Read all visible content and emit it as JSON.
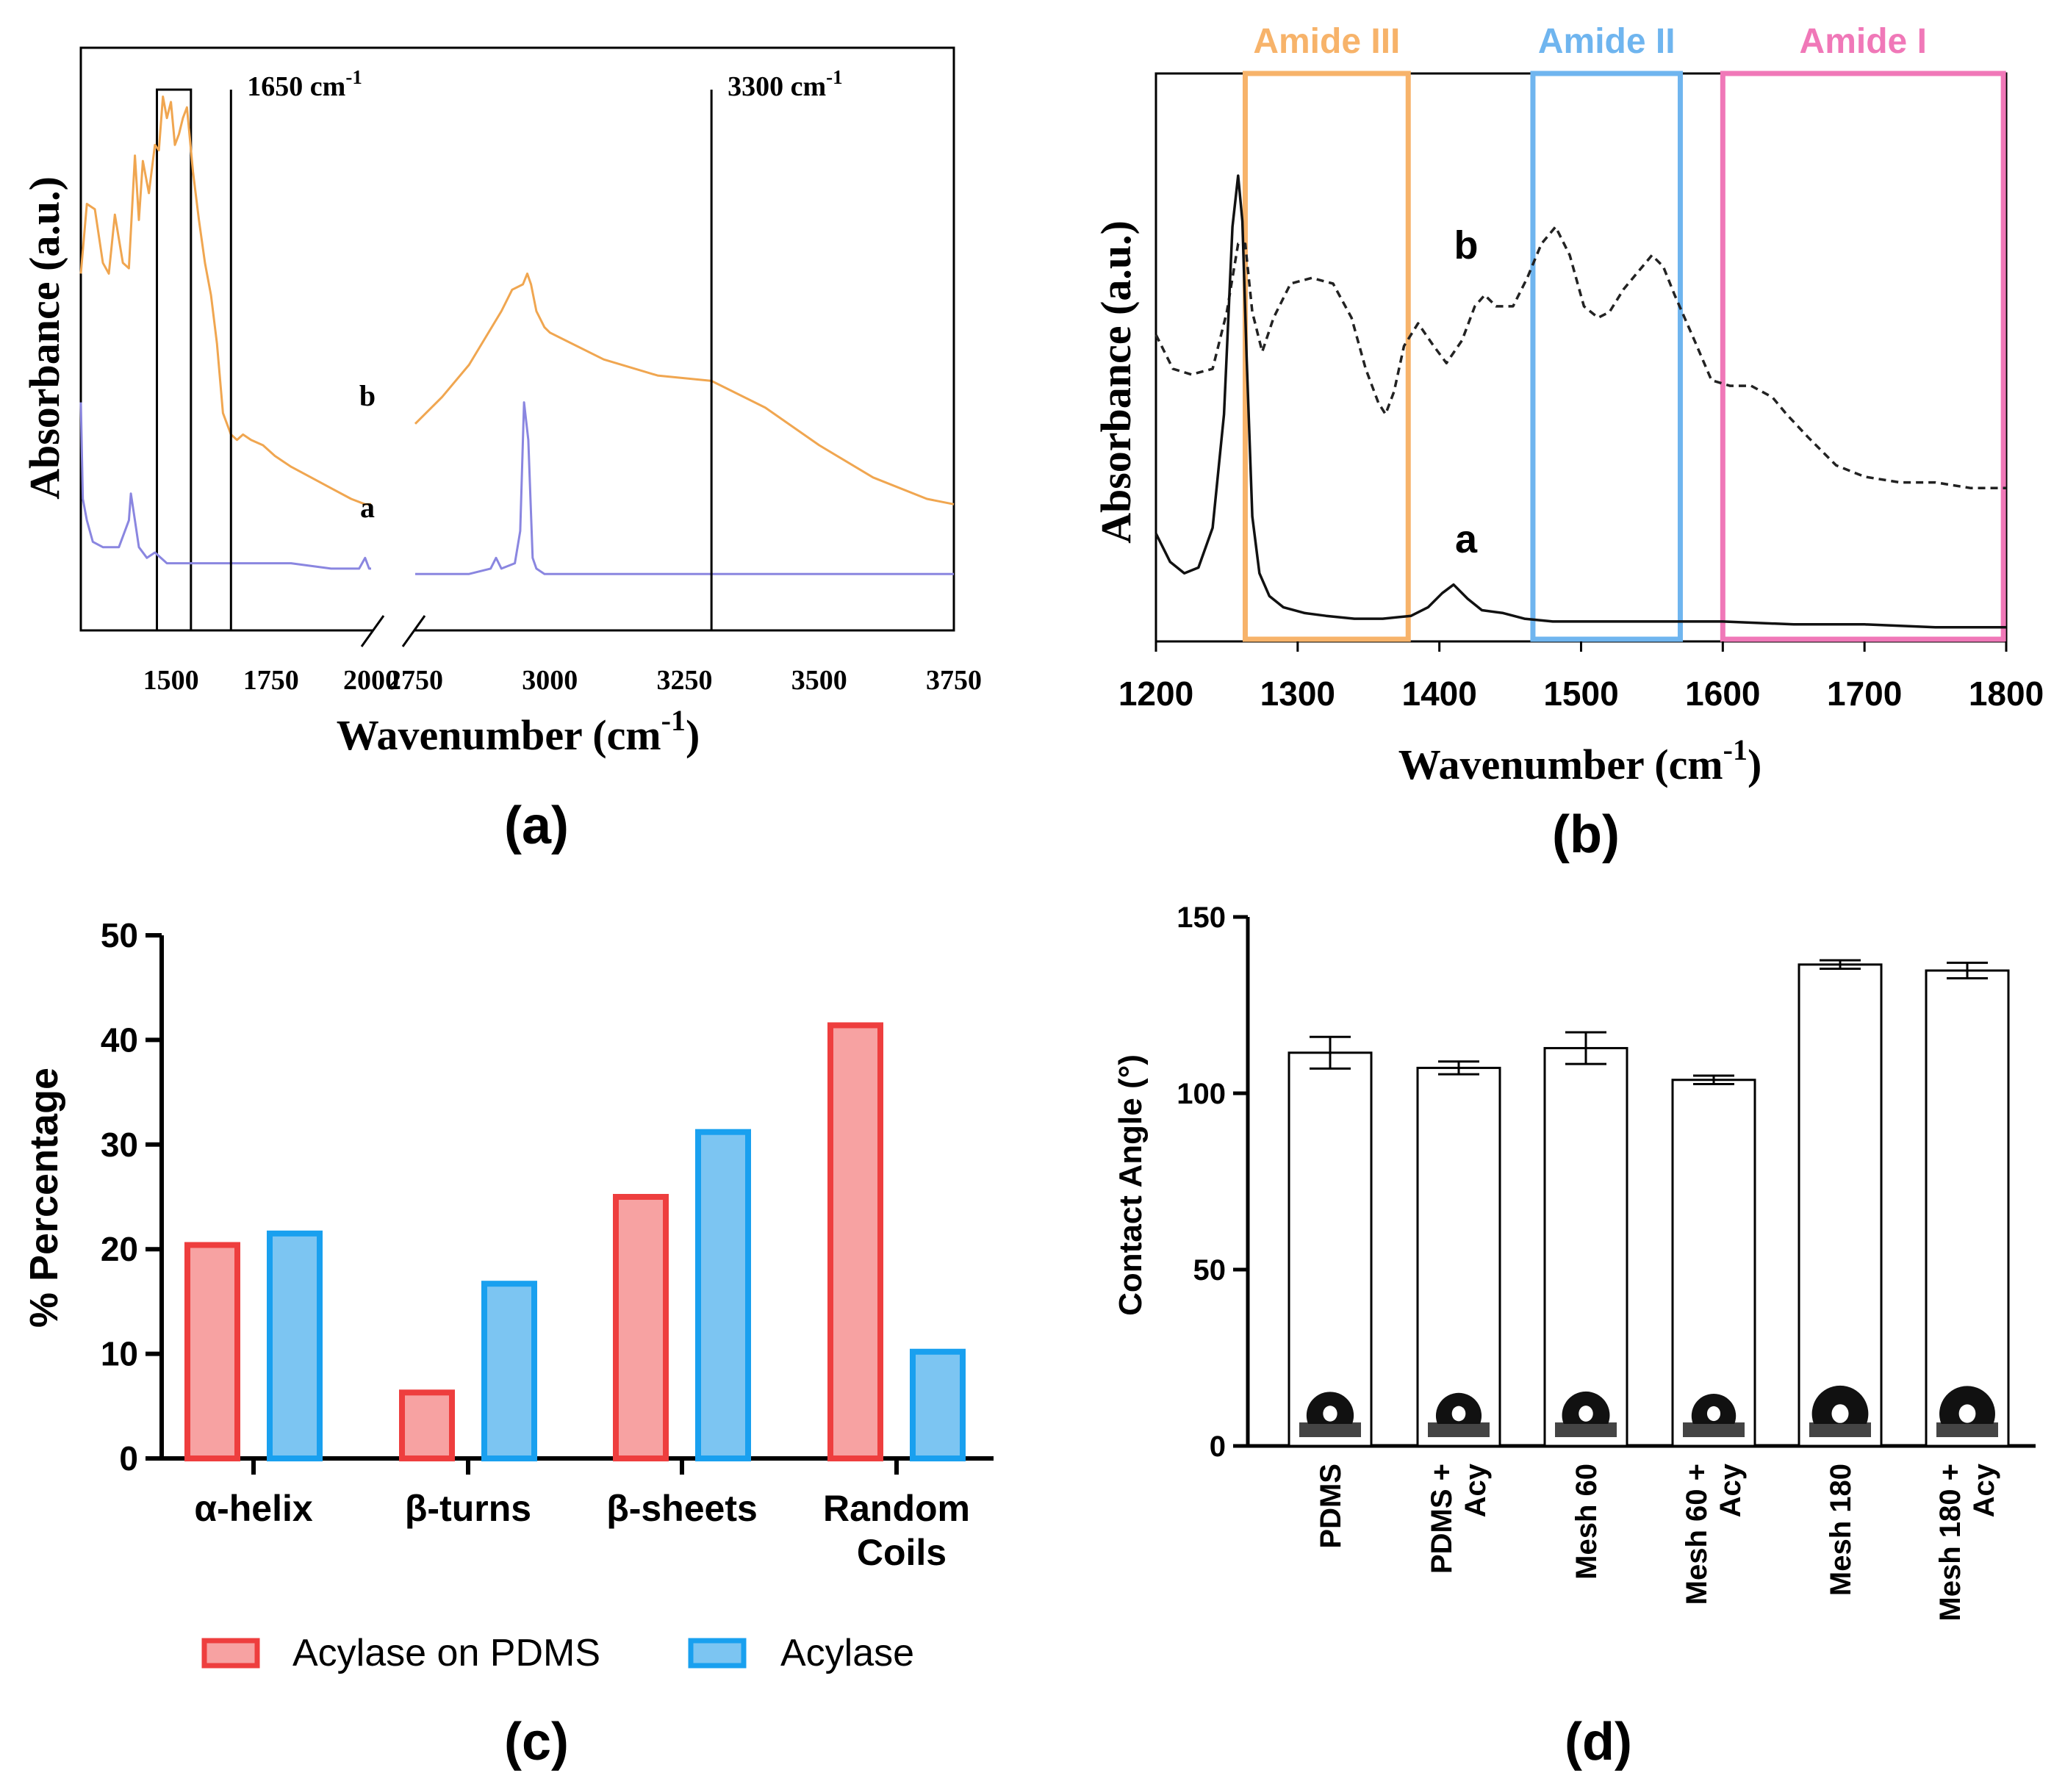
{
  "panels": {
    "a": {
      "caption": "(a)"
    },
    "b": {
      "caption": "(b)"
    },
    "c": {
      "caption": "(c)"
    },
    "d": {
      "caption": "(d)"
    }
  },
  "chart_data": [
    {
      "id": "a",
      "type": "line",
      "xlabel": "Wavenumber (cm",
      "xlabel_sup": "-1",
      "xlabel_close": ")",
      "ylabel": "Absorbance (a.u.)",
      "axis_break": [
        2000,
        2750
      ],
      "xlim": [
        1275,
        3750
      ],
      "xticks": [
        1500,
        1750,
        2000,
        2750,
        3000,
        3250,
        3500,
        3750
      ],
      "markers": [
        {
          "x": 1650,
          "label": "1650 cm",
          "sup": "-1"
        },
        {
          "x": 3300,
          "label": "3300 cm",
          "sup": "-1"
        }
      ],
      "highlight_box": [
        1465,
        1550
      ],
      "series": [
        {
          "name": "b",
          "label": "b",
          "color": "#f0a650",
          "x": [
            1275,
            1290,
            1310,
            1330,
            1345,
            1360,
            1380,
            1395,
            1410,
            1420,
            1430,
            1445,
            1460,
            1470,
            1480,
            1490,
            1500,
            1510,
            1520,
            1530,
            1540,
            1555,
            1570,
            1585,
            1600,
            1615,
            1630,
            1650,
            1665,
            1680,
            1700,
            1730,
            1760,
            1800,
            1850,
            1900,
            1950,
            1985,
            2000,
            2750,
            2800,
            2850,
            2880,
            2910,
            2930,
            2950,
            2958,
            2965,
            2975,
            2990,
            3000,
            3100,
            3200,
            3300,
            3400,
            3500,
            3600,
            3700,
            3750
          ],
          "y": [
            0.62,
            0.75,
            0.74,
            0.64,
            0.62,
            0.73,
            0.64,
            0.63,
            0.84,
            0.72,
            0.83,
            0.77,
            0.86,
            0.85,
            0.95,
            0.91,
            0.94,
            0.86,
            0.88,
            0.91,
            0.93,
            0.81,
            0.72,
            0.64,
            0.58,
            0.49,
            0.36,
            0.32,
            0.31,
            0.32,
            0.31,
            0.3,
            0.28,
            0.26,
            0.24,
            0.22,
            0.2,
            0.19,
            0.19,
            0.34,
            0.39,
            0.45,
            0.5,
            0.55,
            0.59,
            0.6,
            0.62,
            0.6,
            0.55,
            0.52,
            0.51,
            0.46,
            0.43,
            0.42,
            0.37,
            0.3,
            0.24,
            0.2,
            0.19
          ]
        },
        {
          "name": "a",
          "label": "a",
          "color": "#8a86e0",
          "x": [
            1275,
            1280,
            1290,
            1305,
            1330,
            1370,
            1395,
            1400,
            1410,
            1420,
            1440,
            1460,
            1490,
            1550,
            1650,
            1800,
            1900,
            1970,
            1985,
            1995,
            2000,
            2750,
            2850,
            2890,
            2900,
            2910,
            2935,
            2945,
            2952,
            2960,
            2968,
            2975,
            2990,
            3050,
            3200,
            3400,
            3600,
            3750
          ],
          "y": [
            0.38,
            0.2,
            0.16,
            0.12,
            0.11,
            0.11,
            0.16,
            0.21,
            0.16,
            0.11,
            0.09,
            0.1,
            0.08,
            0.08,
            0.08,
            0.08,
            0.07,
            0.07,
            0.09,
            0.07,
            0.07,
            0.06,
            0.06,
            0.07,
            0.09,
            0.07,
            0.08,
            0.14,
            0.38,
            0.31,
            0.09,
            0.07,
            0.06,
            0.06,
            0.06,
            0.06,
            0.06,
            0.06
          ]
        }
      ]
    },
    {
      "id": "b",
      "type": "line",
      "xlabel": "Wavenumber (cm",
      "xlabel_sup": "-1",
      "xlabel_close": ")",
      "ylabel": "Absorbance (a.u.)",
      "xlim": [
        1200,
        1800
      ],
      "ylim": [
        0,
        1
      ],
      "xticks": [
        1200,
        1300,
        1400,
        1500,
        1600,
        1700,
        1800
      ],
      "regions": [
        {
          "label": "Amide III",
          "from": 1263,
          "to": 1378,
          "color": "#f7b36a"
        },
        {
          "label": "Amide II",
          "from": 1466,
          "to": 1570,
          "color": "#6fb5ef"
        },
        {
          "label": "Amide I",
          "from": 1600,
          "to": 1798,
          "color": "#f078b8"
        }
      ],
      "series": [
        {
          "name": "b",
          "label": "b",
          "style": "dashed",
          "color": "#222222",
          "x": [
            1200,
            1212,
            1225,
            1240,
            1250,
            1258,
            1263,
            1268,
            1275,
            1283,
            1295,
            1310,
            1325,
            1338,
            1348,
            1357,
            1362,
            1368,
            1375,
            1385,
            1396,
            1405,
            1416,
            1425,
            1432,
            1440,
            1452,
            1462,
            1472,
            1482,
            1492,
            1502,
            1512,
            1520,
            1530,
            1540,
            1550,
            1558,
            1566,
            1580,
            1592,
            1605,
            1620,
            1635,
            1645,
            1660,
            1680,
            1700,
            1725,
            1750,
            1775,
            1800
          ],
          "y": [
            0.54,
            0.48,
            0.47,
            0.48,
            0.58,
            0.7,
            0.7,
            0.58,
            0.51,
            0.57,
            0.63,
            0.64,
            0.63,
            0.57,
            0.48,
            0.42,
            0.4,
            0.44,
            0.52,
            0.56,
            0.52,
            0.49,
            0.53,
            0.59,
            0.61,
            0.59,
            0.59,
            0.64,
            0.7,
            0.73,
            0.68,
            0.59,
            0.57,
            0.58,
            0.62,
            0.65,
            0.68,
            0.66,
            0.61,
            0.53,
            0.46,
            0.45,
            0.45,
            0.43,
            0.4,
            0.36,
            0.31,
            0.29,
            0.28,
            0.28,
            0.27,
            0.27
          ]
        },
        {
          "name": "a",
          "label": "a",
          "color": "#111111",
          "x": [
            1200,
            1210,
            1220,
            1230,
            1240,
            1248,
            1254,
            1258,
            1261,
            1264,
            1268,
            1273,
            1280,
            1290,
            1305,
            1320,
            1340,
            1360,
            1380,
            1392,
            1402,
            1410,
            1420,
            1430,
            1445,
            1460,
            1480,
            1500,
            1550,
            1600,
            1650,
            1700,
            1750,
            1800
          ],
          "y": [
            0.19,
            0.14,
            0.12,
            0.13,
            0.2,
            0.4,
            0.73,
            0.82,
            0.74,
            0.5,
            0.22,
            0.12,
            0.08,
            0.06,
            0.05,
            0.045,
            0.04,
            0.04,
            0.045,
            0.06,
            0.085,
            0.1,
            0.075,
            0.055,
            0.05,
            0.04,
            0.035,
            0.035,
            0.035,
            0.035,
            0.03,
            0.03,
            0.025,
            0.025
          ]
        }
      ]
    },
    {
      "id": "c",
      "type": "bar",
      "ylabel": "% Percentage",
      "ylim": [
        0,
        50
      ],
      "yticks": [
        0,
        10,
        20,
        30,
        40,
        50
      ],
      "categories": [
        {
          "line1": "α-helix",
          "line2": ""
        },
        {
          "line1": "β-turns",
          "line2": ""
        },
        {
          "line1": "β-sheets",
          "line2": ""
        },
        {
          "line1": "Random",
          "line2": "Coils"
        }
      ],
      "series": [
        {
          "name": "Acylase on PDMS",
          "fill": "#f7a2a2",
          "stroke": "#ee3e3e",
          "values": [
            20.4,
            6.3,
            25.0,
            41.4
          ]
        },
        {
          "name": "Acylase",
          "fill": "#7cc5f2",
          "stroke": "#19a0ef",
          "values": [
            21.5,
            16.7,
            31.2,
            10.2
          ]
        }
      ]
    },
    {
      "id": "d",
      "type": "bar",
      "ylabel": "Contact Angle (°)",
      "ylim": [
        0,
        150
      ],
      "yticks": [
        0,
        50,
        100,
        150
      ],
      "categories": [
        {
          "line1": "PDMS",
          "line2": ""
        },
        {
          "line1": "PDMS +",
          "line2": "Acy"
        },
        {
          "line1": "Mesh 60",
          "line2": ""
        },
        {
          "line1": "Mesh 60 +",
          "line2": "Acy"
        },
        {
          "line1": "Mesh 180",
          "line2": ""
        },
        {
          "line1": "Mesh 180 +",
          "line2": "Acy"
        }
      ],
      "values": [
        111.5,
        107.2,
        112.8,
        103.8,
        136.5,
        134.8
      ],
      "errors": [
        4.5,
        1.8,
        4.5,
        1.2,
        1.2,
        2.2
      ]
    }
  ]
}
